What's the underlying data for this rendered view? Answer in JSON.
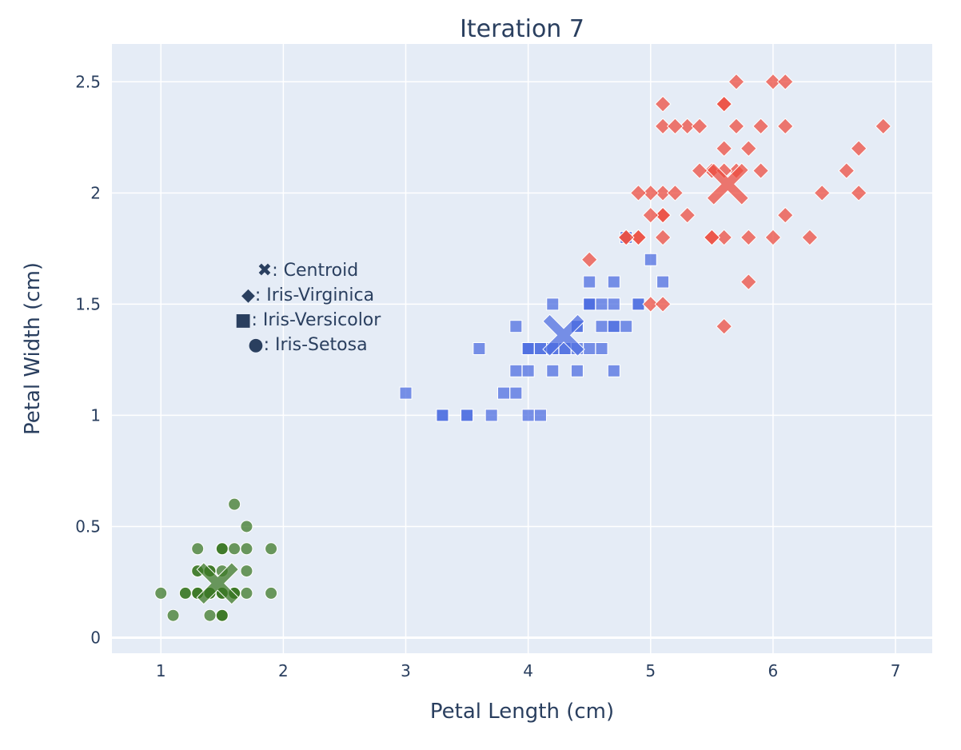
{
  "chart_data": {
    "type": "scatter",
    "title": "Iteration 7",
    "xlabel": "Petal Length (cm)",
    "ylabel": "Petal Width (cm)",
    "xlim": [
      0.6,
      7.3
    ],
    "ylim": [
      -0.07,
      2.67
    ],
    "x_ticks": [
      1,
      2,
      3,
      4,
      5,
      6,
      7
    ],
    "y_ticks": [
      0,
      0.5,
      1,
      1.5,
      2,
      2.5
    ],
    "x_tick_labels": [
      "1",
      "2",
      "3",
      "4",
      "5",
      "6",
      "7"
    ],
    "y_tick_labels": [
      "0",
      "0.5",
      "1",
      "1.5",
      "2",
      "2.5"
    ],
    "grid": true,
    "background_color": "#e5ecf6",
    "legend": {
      "placement": "inside-left",
      "entries": [
        {
          "symbol": "✖",
          "label": ": Centroid"
        },
        {
          "symbol": "◆",
          "label": ": Iris-Virginica"
        },
        {
          "symbol": "■",
          "label": ": Iris-Versicolor"
        },
        {
          "symbol": "●",
          "label": ": Iris-Setosa"
        }
      ]
    },
    "clusters": [
      {
        "color": "#3d7a28"
      },
      {
        "color": "#4f6fe0"
      },
      {
        "color": "#ec4e40"
      }
    ],
    "series": [
      {
        "species": "Iris-Setosa",
        "marker": "circle",
        "cluster": [
          0
        ],
        "points": [
          [
            1.4,
            0.2
          ],
          [
            1.4,
            0.2
          ],
          [
            1.3,
            0.2
          ],
          [
            1.5,
            0.2
          ],
          [
            1.4,
            0.2
          ],
          [
            1.7,
            0.4
          ],
          [
            1.4,
            0.3
          ],
          [
            1.5,
            0.2
          ],
          [
            1.4,
            0.2
          ],
          [
            1.5,
            0.1
          ],
          [
            1.5,
            0.2
          ],
          [
            1.6,
            0.2
          ],
          [
            1.4,
            0.1
          ],
          [
            1.1,
            0.1
          ],
          [
            1.2,
            0.2
          ],
          [
            1.5,
            0.4
          ],
          [
            1.3,
            0.4
          ],
          [
            1.4,
            0.3
          ],
          [
            1.7,
            0.3
          ],
          [
            1.5,
            0.3
          ],
          [
            1.7,
            0.2
          ],
          [
            1.5,
            0.4
          ],
          [
            1.0,
            0.2
          ],
          [
            1.7,
            0.5
          ],
          [
            1.9,
            0.2
          ],
          [
            1.6,
            0.2
          ],
          [
            1.6,
            0.4
          ],
          [
            1.5,
            0.2
          ],
          [
            1.4,
            0.2
          ],
          [
            1.6,
            0.2
          ],
          [
            1.6,
            0.2
          ],
          [
            1.5,
            0.4
          ],
          [
            1.5,
            0.1
          ],
          [
            1.4,
            0.2
          ],
          [
            1.5,
            0.1
          ],
          [
            1.2,
            0.2
          ],
          [
            1.3,
            0.2
          ],
          [
            1.5,
            0.1
          ],
          [
            1.3,
            0.2
          ],
          [
            1.5,
            0.2
          ],
          [
            1.3,
            0.3
          ],
          [
            1.3,
            0.3
          ],
          [
            1.3,
            0.2
          ],
          [
            1.6,
            0.6
          ],
          [
            1.9,
            0.4
          ],
          [
            1.4,
            0.3
          ],
          [
            1.6,
            0.2
          ],
          [
            1.4,
            0.2
          ],
          [
            1.5,
            0.2
          ],
          [
            1.4,
            0.2
          ]
        ]
      },
      {
        "species": "Iris-Versicolor",
        "marker": "square",
        "cluster": [
          1
        ],
        "points": [
          [
            4.7,
            1.4
          ],
          [
            4.5,
            1.5
          ],
          [
            4.9,
            1.5
          ],
          [
            4.0,
            1.3
          ],
          [
            4.6,
            1.5
          ],
          [
            4.5,
            1.3
          ],
          [
            4.7,
            1.6
          ],
          [
            3.3,
            1.0
          ],
          [
            4.6,
            1.3
          ],
          [
            3.9,
            1.4
          ],
          [
            3.5,
            1.0
          ],
          [
            4.2,
            1.5
          ],
          [
            4.0,
            1.0
          ],
          [
            4.7,
            1.4
          ],
          [
            3.6,
            1.3
          ],
          [
            4.4,
            1.4
          ],
          [
            4.5,
            1.5
          ],
          [
            4.1,
            1.0
          ],
          [
            4.5,
            1.5
          ],
          [
            3.9,
            1.1
          ],
          [
            4.8,
            1.8
          ],
          [
            4.0,
            1.3
          ],
          [
            4.9,
            1.5
          ],
          [
            4.7,
            1.2
          ],
          [
            4.3,
            1.3
          ],
          [
            4.4,
            1.4
          ],
          [
            4.8,
            1.4
          ],
          [
            5.0,
            1.7
          ],
          [
            4.5,
            1.5
          ],
          [
            3.5,
            1.0
          ],
          [
            3.8,
            1.1
          ],
          [
            3.7,
            1.0
          ],
          [
            3.9,
            1.2
          ],
          [
            5.1,
            1.6
          ],
          [
            4.5,
            1.5
          ],
          [
            4.5,
            1.6
          ],
          [
            4.7,
            1.5
          ],
          [
            4.4,
            1.3
          ],
          [
            4.1,
            1.3
          ],
          [
            4.0,
            1.3
          ],
          [
            4.4,
            1.2
          ],
          [
            4.6,
            1.4
          ],
          [
            4.0,
            1.2
          ],
          [
            3.3,
            1.0
          ],
          [
            4.2,
            1.3
          ],
          [
            4.2,
            1.2
          ],
          [
            4.2,
            1.3
          ],
          [
            4.3,
            1.3
          ],
          [
            3.0,
            1.1
          ],
          [
            4.1,
            1.3
          ]
        ]
      },
      {
        "species": "Iris-Virginica",
        "marker": "diamond",
        "cluster": [
          2
        ],
        "points": [
          [
            6.0,
            2.5
          ],
          [
            5.1,
            1.9
          ],
          [
            5.9,
            2.1
          ],
          [
            5.6,
            1.8
          ],
          [
            5.8,
            2.2
          ],
          [
            6.6,
            2.1
          ],
          [
            4.5,
            1.7
          ],
          [
            6.3,
            1.8
          ],
          [
            5.8,
            1.8
          ],
          [
            6.1,
            2.5
          ],
          [
            5.1,
            2.0
          ],
          [
            5.3,
            1.9
          ],
          [
            5.5,
            2.1
          ],
          [
            5.0,
            2.0
          ],
          [
            5.1,
            2.4
          ],
          [
            5.3,
            2.3
          ],
          [
            5.5,
            1.8
          ],
          [
            6.7,
            2.2
          ],
          [
            6.9,
            2.3
          ],
          [
            5.0,
            1.5
          ],
          [
            5.7,
            2.3
          ],
          [
            4.9,
            2.0
          ],
          [
            6.7,
            2.0
          ],
          [
            4.9,
            1.8
          ],
          [
            5.7,
            2.1
          ],
          [
            6.0,
            1.8
          ],
          [
            4.8,
            1.8
          ],
          [
            4.9,
            1.8
          ],
          [
            5.6,
            2.1
          ],
          [
            5.8,
            1.6
          ],
          [
            6.1,
            1.9
          ],
          [
            6.4,
            2.0
          ],
          [
            5.6,
            2.2
          ],
          [
            5.1,
            1.5
          ],
          [
            5.6,
            1.4
          ],
          [
            6.1,
            2.3
          ],
          [
            5.6,
            2.4
          ],
          [
            5.5,
            1.8
          ],
          [
            4.8,
            1.8
          ],
          [
            5.4,
            2.1
          ],
          [
            5.6,
            2.4
          ],
          [
            5.1,
            2.3
          ],
          [
            5.1,
            1.9
          ],
          [
            5.9,
            2.3
          ],
          [
            5.7,
            2.5
          ],
          [
            5.2,
            2.3
          ],
          [
            5.0,
            1.9
          ],
          [
            5.2,
            2.0
          ],
          [
            5.4,
            2.3
          ],
          [
            5.1,
            1.8
          ]
        ]
      }
    ],
    "centroids": [
      {
        "x": 1.464,
        "y": 0.244,
        "cluster": 0
      },
      {
        "x": 4.29,
        "y": 1.36,
        "cluster": 1
      },
      {
        "x": 5.63,
        "y": 2.04,
        "cluster": 2
      }
    ]
  }
}
